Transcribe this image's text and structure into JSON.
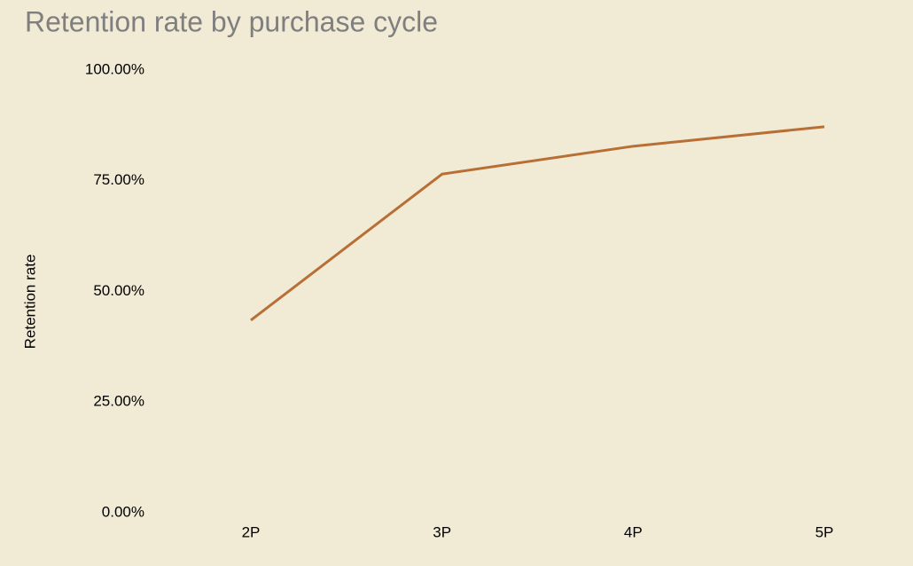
{
  "chart_data": {
    "type": "line",
    "title": "Retention rate by purchase cycle",
    "y_label": "Retention rate",
    "categories": [
      "2P",
      "3P",
      "4P",
      "5P"
    ],
    "series": [
      {
        "name": "Retention rate",
        "color": "#b86f35",
        "values": [
          43.5,
          76.5,
          82.8,
          87.2
        ]
      }
    ],
    "ylim": [
      0,
      100
    ],
    "yticks": [
      {
        "value": 0,
        "label": "0.00%"
      },
      {
        "value": 25,
        "label": "25.00%"
      },
      {
        "value": 50,
        "label": "50.00%"
      },
      {
        "value": 75,
        "label": "75.00%"
      },
      {
        "value": 100,
        "label": "100.00%"
      }
    ],
    "grid": false
  }
}
